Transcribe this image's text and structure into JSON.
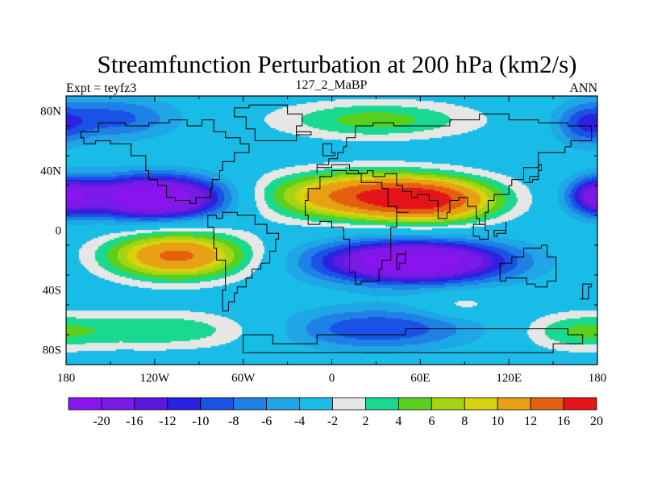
{
  "chart_data": {
    "type": "heatmap",
    "subtype": "filled-contour-map",
    "title": "Streamfunction Perturbation at 200 hPa (km2/s)",
    "left_subtitle": "Expt = teyfz3",
    "center_subtitle": "127_2_MaBP",
    "right_subtitle": "ANN",
    "projection": "cylindrical-equidistant",
    "x_range": [
      -180,
      180
    ],
    "y_range": [
      -90,
      90
    ],
    "x_ticks": [
      {
        "value": -180,
        "label": "180"
      },
      {
        "value": -120,
        "label": "120W"
      },
      {
        "value": -60,
        "label": "60W"
      },
      {
        "value": 0,
        "label": "0"
      },
      {
        "value": 60,
        "label": "60E"
      },
      {
        "value": 120,
        "label": "120E"
      },
      {
        "value": 180,
        "label": "180"
      }
    ],
    "y_ticks": [
      {
        "value": 80,
        "label": "80N"
      },
      {
        "value": 40,
        "label": "40N"
      },
      {
        "value": 0,
        "label": "0"
      },
      {
        "value": -40,
        "label": "40S"
      },
      {
        "value": -80,
        "label": "80S"
      }
    ],
    "minor_x_step": 30,
    "minor_y_step": 20,
    "contour_levels": [
      -20,
      -16,
      -12,
      -10,
      -8,
      -6,
      -4,
      -2,
      2,
      4,
      6,
      8,
      10,
      12,
      16,
      20
    ],
    "colorbar_colors": [
      "#8a14f0",
      "#7a1ae6",
      "#5d18e0",
      "#2a22e0",
      "#1a52e6",
      "#1f80e6",
      "#1ea6e6",
      "#19bce6",
      "#e6e6e6",
      "#19d890",
      "#5ad01e",
      "#a6d414",
      "#d8d20f",
      "#e8a014",
      "#e4600f",
      "#e41419"
    ],
    "anomalies": [
      {
        "lon": -120,
        "lat": 22,
        "amplitude": -22,
        "sigma_lon": 34,
        "sigma_lat": 10
      },
      {
        "lon": 25,
        "lat": 23,
        "amplitude": 18,
        "sigma_lon": 48,
        "sigma_lat": 11
      },
      {
        "lon": 70,
        "lat": 19,
        "amplitude": 12,
        "sigma_lon": 30,
        "sigma_lat": 10
      },
      {
        "lon": -105,
        "lat": -17,
        "amplitude": 17,
        "sigma_lon": 33,
        "sigma_lat": 11
      },
      {
        "lon": 55,
        "lat": -21,
        "amplitude": -21,
        "sigma_lon": 45,
        "sigma_lat": 10
      },
      {
        "lon": 180,
        "lat": 23,
        "amplitude": -12,
        "sigma_lon": 14,
        "sigma_lat": 9
      },
      {
        "lon": -150,
        "lat": 75,
        "amplitude": -7,
        "sigma_lon": 32,
        "sigma_lat": 10
      },
      {
        "lon": 30,
        "lat": 74,
        "amplitude": 7,
        "sigma_lon": 48,
        "sigma_lat": 9
      },
      {
        "lon": 172,
        "lat": 70,
        "amplitude": -6,
        "sigma_lon": 14,
        "sigma_lat": 10
      },
      {
        "lon": 30,
        "lat": -66,
        "amplitude": -8,
        "sigma_lon": 48,
        "sigma_lat": 10
      },
      {
        "lon": -115,
        "lat": -67,
        "amplitude": 6,
        "sigma_lon": 50,
        "sigma_lat": 9
      },
      {
        "lon": 165,
        "lat": -68,
        "amplitude": 5,
        "sigma_lon": 26,
        "sigma_lat": 9
      },
      {
        "lon": 88,
        "lat": -50,
        "amplitude": 3.5,
        "sigma_lon": 18,
        "sigma_lat": 6
      }
    ],
    "grid": false,
    "colorbar_position": "bottom"
  }
}
